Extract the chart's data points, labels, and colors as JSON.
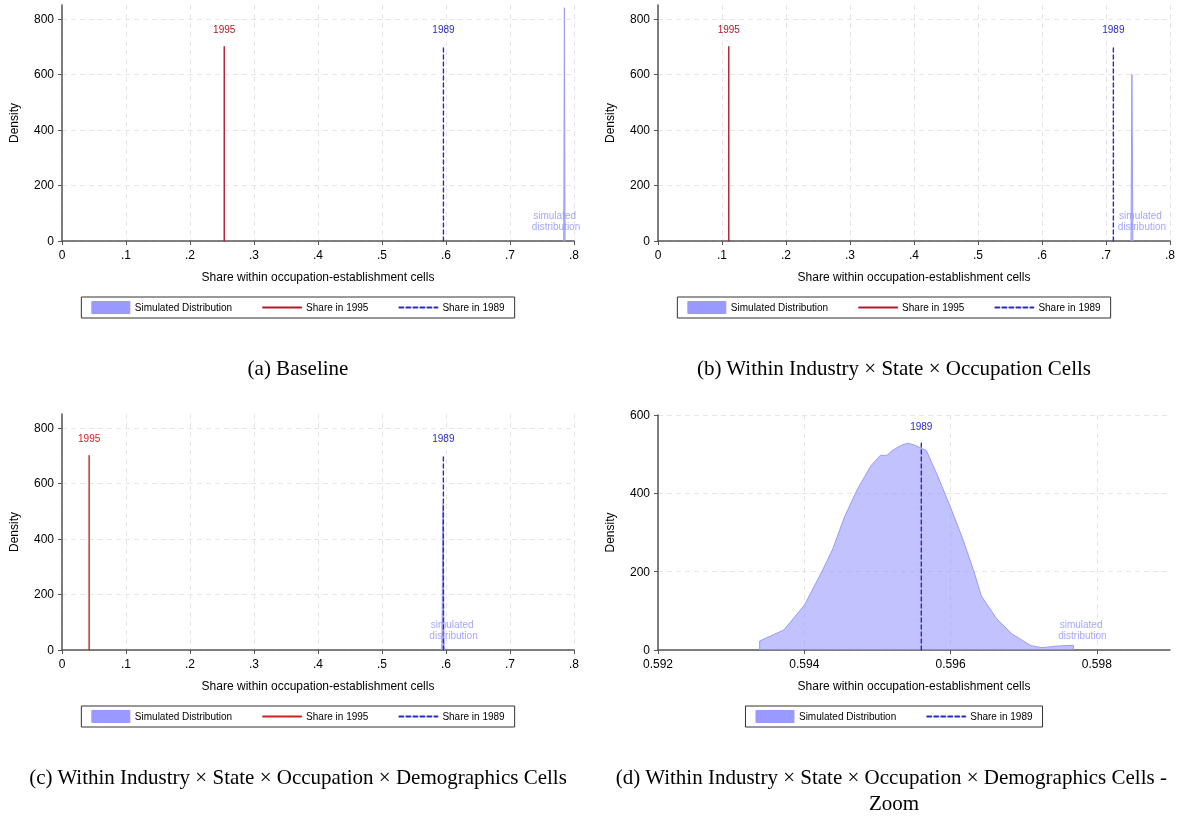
{
  "chart_data": [
    {
      "type": "line",
      "title": "(a) Baseline",
      "xlabel": "Share within occupation-establishment cells",
      "ylabel": "Density",
      "xlim": [
        0,
        0.8
      ],
      "ylim": [
        0,
        850
      ],
      "xticks": [
        0,
        {
          "value": 0.1,
          "label": ".1"
        },
        {
          "value": 0.2,
          "label": ".2"
        },
        {
          "value": 0.3,
          "label": ".3"
        },
        {
          "value": 0.4,
          "label": ".4"
        },
        {
          "value": 0.5,
          "label": ".5"
        },
        {
          "value": 0.6,
          "label": ".6"
        },
        {
          "value": 0.7,
          "label": ".7"
        },
        {
          "value": 0.8,
          "label": ".8"
        }
      ],
      "yticks": [
        0,
        200,
        400,
        600,
        800
      ],
      "grid": true,
      "legend": "bottom",
      "series": [
        {
          "name": "Simulated Distribution",
          "type": "area",
          "color": "#9999ff",
          "x": [
            0.784,
            0.785,
            0.786
          ],
          "values": [
            0,
            840,
            0
          ]
        },
        {
          "name": "Share in 1995",
          "line_style": "solid",
          "color": "#b2182b",
          "x": [
            0.2535,
            0.2535
          ],
          "values": [
            0,
            700
          ]
        },
        {
          "name": "Share in 1989",
          "line_style": "dashed",
          "color": "#2a2acc",
          "x": [
            0.596,
            0.596
          ],
          "values": [
            0,
            700
          ]
        }
      ],
      "annotations": [
        "simulated distribution",
        "1995",
        "1989"
      ]
    },
    {
      "type": "line",
      "title": "(b) Within Industry × State × Occupation Cells",
      "xlabel": "Share within occupation-establishment cells",
      "ylabel": "Density",
      "xlim": [
        0,
        0.8
      ],
      "ylim": [
        0,
        850
      ],
      "xticks": [
        0,
        {
          "value": 0.1,
          "label": ".1"
        },
        {
          "value": 0.2,
          "label": ".2"
        },
        {
          "value": 0.3,
          "label": ".3"
        },
        {
          "value": 0.4,
          "label": ".4"
        },
        {
          "value": 0.5,
          "label": ".5"
        },
        {
          "value": 0.6,
          "label": ".6"
        },
        {
          "value": 0.7,
          "label": ".7"
        },
        {
          "value": 0.8,
          "label": ".8"
        }
      ],
      "yticks": [
        0,
        200,
        400,
        600,
        800
      ],
      "grid": true,
      "legend": "bottom",
      "series": [
        {
          "name": "Simulated Distribution",
          "type": "area",
          "color": "#9999ff",
          "x": [
            0.739,
            0.7405,
            0.742
          ],
          "values": [
            0,
            600,
            0
          ]
        },
        {
          "name": "Share in 1995",
          "line_style": "solid",
          "color": "#b2182b",
          "x": [
            0.1106,
            0.1106
          ],
          "values": [
            0,
            700
          ]
        },
        {
          "name": "Share in 1989",
          "line_style": "dashed",
          "color": "#2a2acc",
          "x": [
            0.7115,
            0.7115
          ],
          "values": [
            0,
            700
          ]
        }
      ],
      "annotations": [
        "simulated distribution",
        "1995",
        "1989"
      ]
    },
    {
      "type": "line",
      "title": "(c) Within Industry × State × Occupation × Demographics Cells",
      "xlabel": "Share within occupation-establishment cells",
      "ylabel": "Density",
      "xlim": [
        0,
        0.8
      ],
      "ylim": [
        0,
        850
      ],
      "xticks": [
        0,
        {
          "value": 0.1,
          "label": ".1"
        },
        {
          "value": 0.2,
          "label": ".2"
        },
        {
          "value": 0.3,
          "label": ".3"
        },
        {
          "value": 0.4,
          "label": ".4"
        },
        {
          "value": 0.5,
          "label": ".5"
        },
        {
          "value": 0.6,
          "label": ".6"
        },
        {
          "value": 0.7,
          "label": ".7"
        },
        {
          "value": 0.8,
          "label": ".8"
        }
      ],
      "yticks": [
        0,
        200,
        400,
        600,
        800
      ],
      "grid": true,
      "legend": "bottom",
      "series": [
        {
          "name": "Simulated Distribution",
          "type": "area",
          "color": "#9999ff",
          "x": [
            0.59339,
            0.59339,
            0.59372,
            0.594,
            0.59424,
            0.59439,
            0.59455,
            0.59473,
            0.59491,
            0.59504,
            0.59513,
            0.5952,
            0.59533,
            0.59542,
            0.59551,
            0.59567,
            0.59582,
            0.596,
            0.59616,
            0.59632,
            0.59642,
            0.59663,
            0.59684,
            0.5971,
            0.59725,
            0.59746,
            0.59768,
            0.59768
          ],
          "values": [
            0,
            23,
            51,
            114,
            200,
            258,
            340,
            412,
            470,
            497,
            497,
            509,
            523,
            528,
            523,
            509,
            446,
            364,
            287,
            200,
            138,
            80,
            41,
            11,
            6,
            10,
            12,
            0
          ]
        },
        {
          "name": "Share in 1995",
          "line_style": "solid",
          "color": "#cc2222",
          "x": [
            0.0424,
            0.0424
          ],
          "values": [
            0,
            700
          ]
        },
        {
          "name": "Share in 1989",
          "line_style": "dashed",
          "color": "#2a2acc",
          "x": [
            0.5959,
            0.5959
          ],
          "values": [
            0,
            700
          ]
        }
      ],
      "annotations": [
        "simulated distribution",
        "1995",
        "1989"
      ]
    },
    {
      "type": "line",
      "title": "(d) Within Industry × State × Occupation × Demographics Cells - Zoom",
      "xlabel": "Share within occupation-establishment cells",
      "ylabel": "Density",
      "xlim": [
        0.592,
        0.599
      ],
      "ylim": [
        0,
        600
      ],
      "xticks": [
        0.592,
        0.594,
        0.596,
        0.598
      ],
      "yticks": [
        0,
        200,
        400,
        600
      ],
      "grid": true,
      "legend": "bottom",
      "series": [
        {
          "name": "Simulated Distribution",
          "type": "area",
          "color": "#9999ff",
          "x": [
            0.59339,
            0.59339,
            0.59372,
            0.594,
            0.59424,
            0.59439,
            0.59455,
            0.59473,
            0.59491,
            0.59504,
            0.59513,
            0.5952,
            0.59533,
            0.59542,
            0.59551,
            0.59567,
            0.59582,
            0.596,
            0.59616,
            0.59632,
            0.59642,
            0.59663,
            0.59684,
            0.5971,
            0.59725,
            0.59746,
            0.59768,
            0.59768
          ],
          "values": [
            0,
            23,
            51,
            114,
            200,
            258,
            340,
            412,
            470,
            497,
            497,
            509,
            523,
            528,
            523,
            509,
            446,
            364,
            287,
            200,
            138,
            80,
            41,
            11,
            6,
            10,
            12,
            0
          ]
        },
        {
          "name": "Share in 1989",
          "line_style": "dashed",
          "color": "#2a2acc",
          "x": [
            0.5956,
            0.5956
          ],
          "values": [
            0,
            528
          ]
        }
      ],
      "annotations": [
        "simulated distribution",
        "1989"
      ]
    }
  ]
}
